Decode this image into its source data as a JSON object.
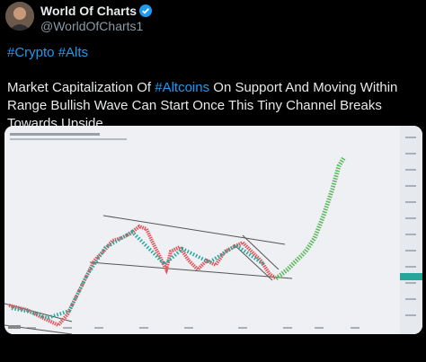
{
  "user": {
    "name": "World Of Charts",
    "handle": "@WorldOfCharts1"
  },
  "tweet": {
    "hashtags": "#Crypto #Alts",
    "text": [
      "Market Capitalization Of ",
      "#Altcoins",
      " On Support And Moving Within Range Bullish Wave Can Start Once This Tiny Channel Breaks Towards Upside"
    ]
  }
}
